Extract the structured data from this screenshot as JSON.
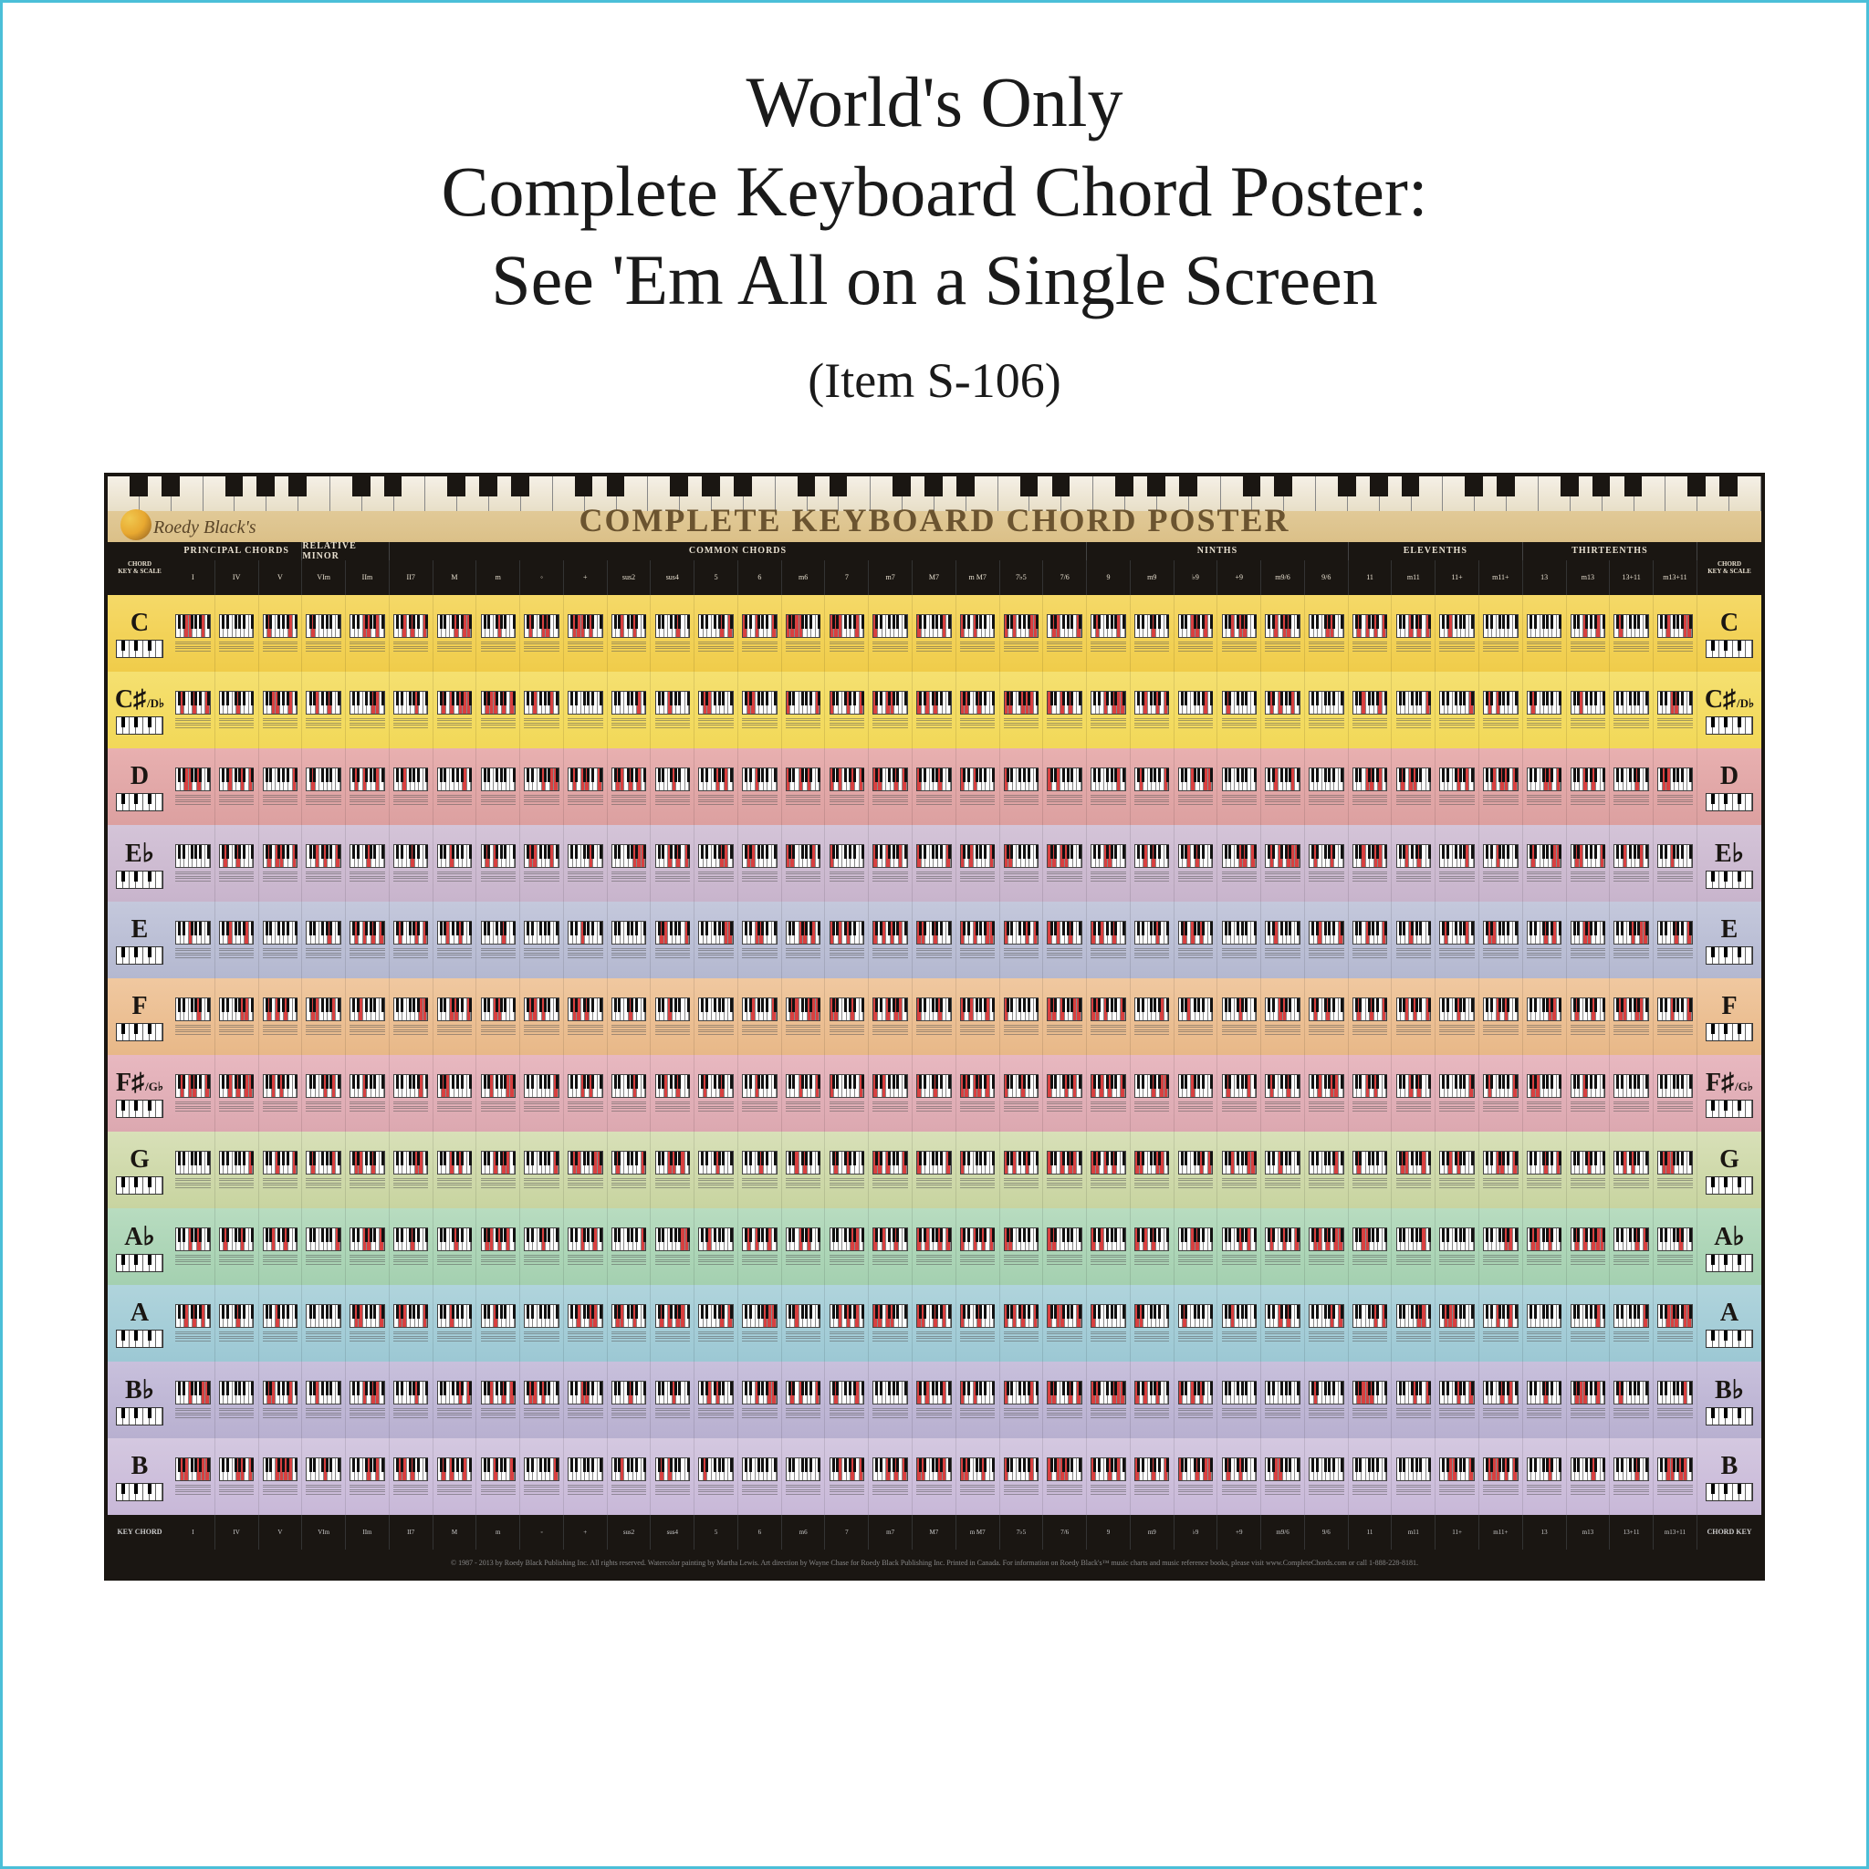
{
  "heading_lines": [
    "World's Only",
    "Complete Keyboard Chord Poster:",
    "See 'Em All on a Single Screen"
  ],
  "subheading": "(Item S-106)",
  "poster": {
    "brand": "Roedy Black's",
    "title": "COMPLETE KEYBOARD CHORD POSTER",
    "side_label_top": "CHORD",
    "side_label_sub": "KEY & SCALE",
    "footer_left": "KEY",
    "footer_left2": "CHORD",
    "footer_right": "CHORD",
    "footer_right2": "KEY",
    "category_groups": [
      {
        "label": "PRINCIPAL CHORDS",
        "span": 3
      },
      {
        "label": "RELATIVE MINOR",
        "span": 2
      },
      {
        "label": "COMMON CHORDS",
        "span": 16
      },
      {
        "label": "NINTHS",
        "span": 6
      },
      {
        "label": "ELEVENTHS",
        "span": 4
      },
      {
        "label": "THIRTEENTHS",
        "span": 4
      }
    ],
    "columns": [
      "I",
      "IV",
      "V",
      "VIm",
      "IIm",
      "II7",
      "M",
      "m",
      "◦",
      "+",
      "sus2",
      "sus4",
      "5",
      "6",
      "m6",
      "7",
      "m7",
      "M7",
      "m M7",
      "7♭5",
      "7/6",
      "9",
      "m9",
      "♭9",
      "+9",
      "m9/6",
      "9/6",
      "11",
      "m11",
      "11+",
      "m11+",
      "13",
      "m13",
      "13+11",
      "m13+11"
    ],
    "keys": [
      {
        "label": "C",
        "qual": "",
        "color": "#f5d968",
        "color2": "#f0cc4a"
      },
      {
        "label": "C♯",
        "qual": "D♭",
        "color": "#f5e070",
        "color2": "#f2d858"
      },
      {
        "label": "D",
        "qual": "",
        "color": "#e8b0b0",
        "color2": "#dca0a0"
      },
      {
        "label": "E♭",
        "qual": "",
        "color": "#d4c4d8",
        "color2": "#c8b4cc"
      },
      {
        "label": "E",
        "qual": "",
        "color": "#c4c8dc",
        "color2": "#b4b8d0"
      },
      {
        "label": "F",
        "qual": "",
        "color": "#f0c8a0",
        "color2": "#e8b888"
      },
      {
        "label": "F♯",
        "qual": "G♭",
        "color": "#e8b8c0",
        "color2": "#dca8b0"
      },
      {
        "label": "G",
        "qual": "",
        "color": "#d8e0b8",
        "color2": "#c8d4a0"
      },
      {
        "label": "A♭",
        "qual": "",
        "color": "#b8dcc0",
        "color2": "#a4d0b0"
      },
      {
        "label": "A",
        "qual": "",
        "color": "#b0d4dc",
        "color2": "#9cc8d4"
      },
      {
        "label": "B♭",
        "qual": "",
        "color": "#c8c0dc",
        "color2": "#b8b0d0"
      },
      {
        "label": "B",
        "qual": "",
        "color": "#d4c8e0",
        "color2": "#c8b8d8"
      }
    ],
    "copyright": "© 1987 - 2013 by Roedy Black Publishing Inc. All rights reserved. Watercolor painting by Martha Lewis. Art direction by Wayne Chase for Roedy Black Publishing Inc. Printed in Canada. For information on Roedy Black's™ music charts and music reference books, please visit www.CompleteChords.com or call 1-888-228-8181."
  }
}
